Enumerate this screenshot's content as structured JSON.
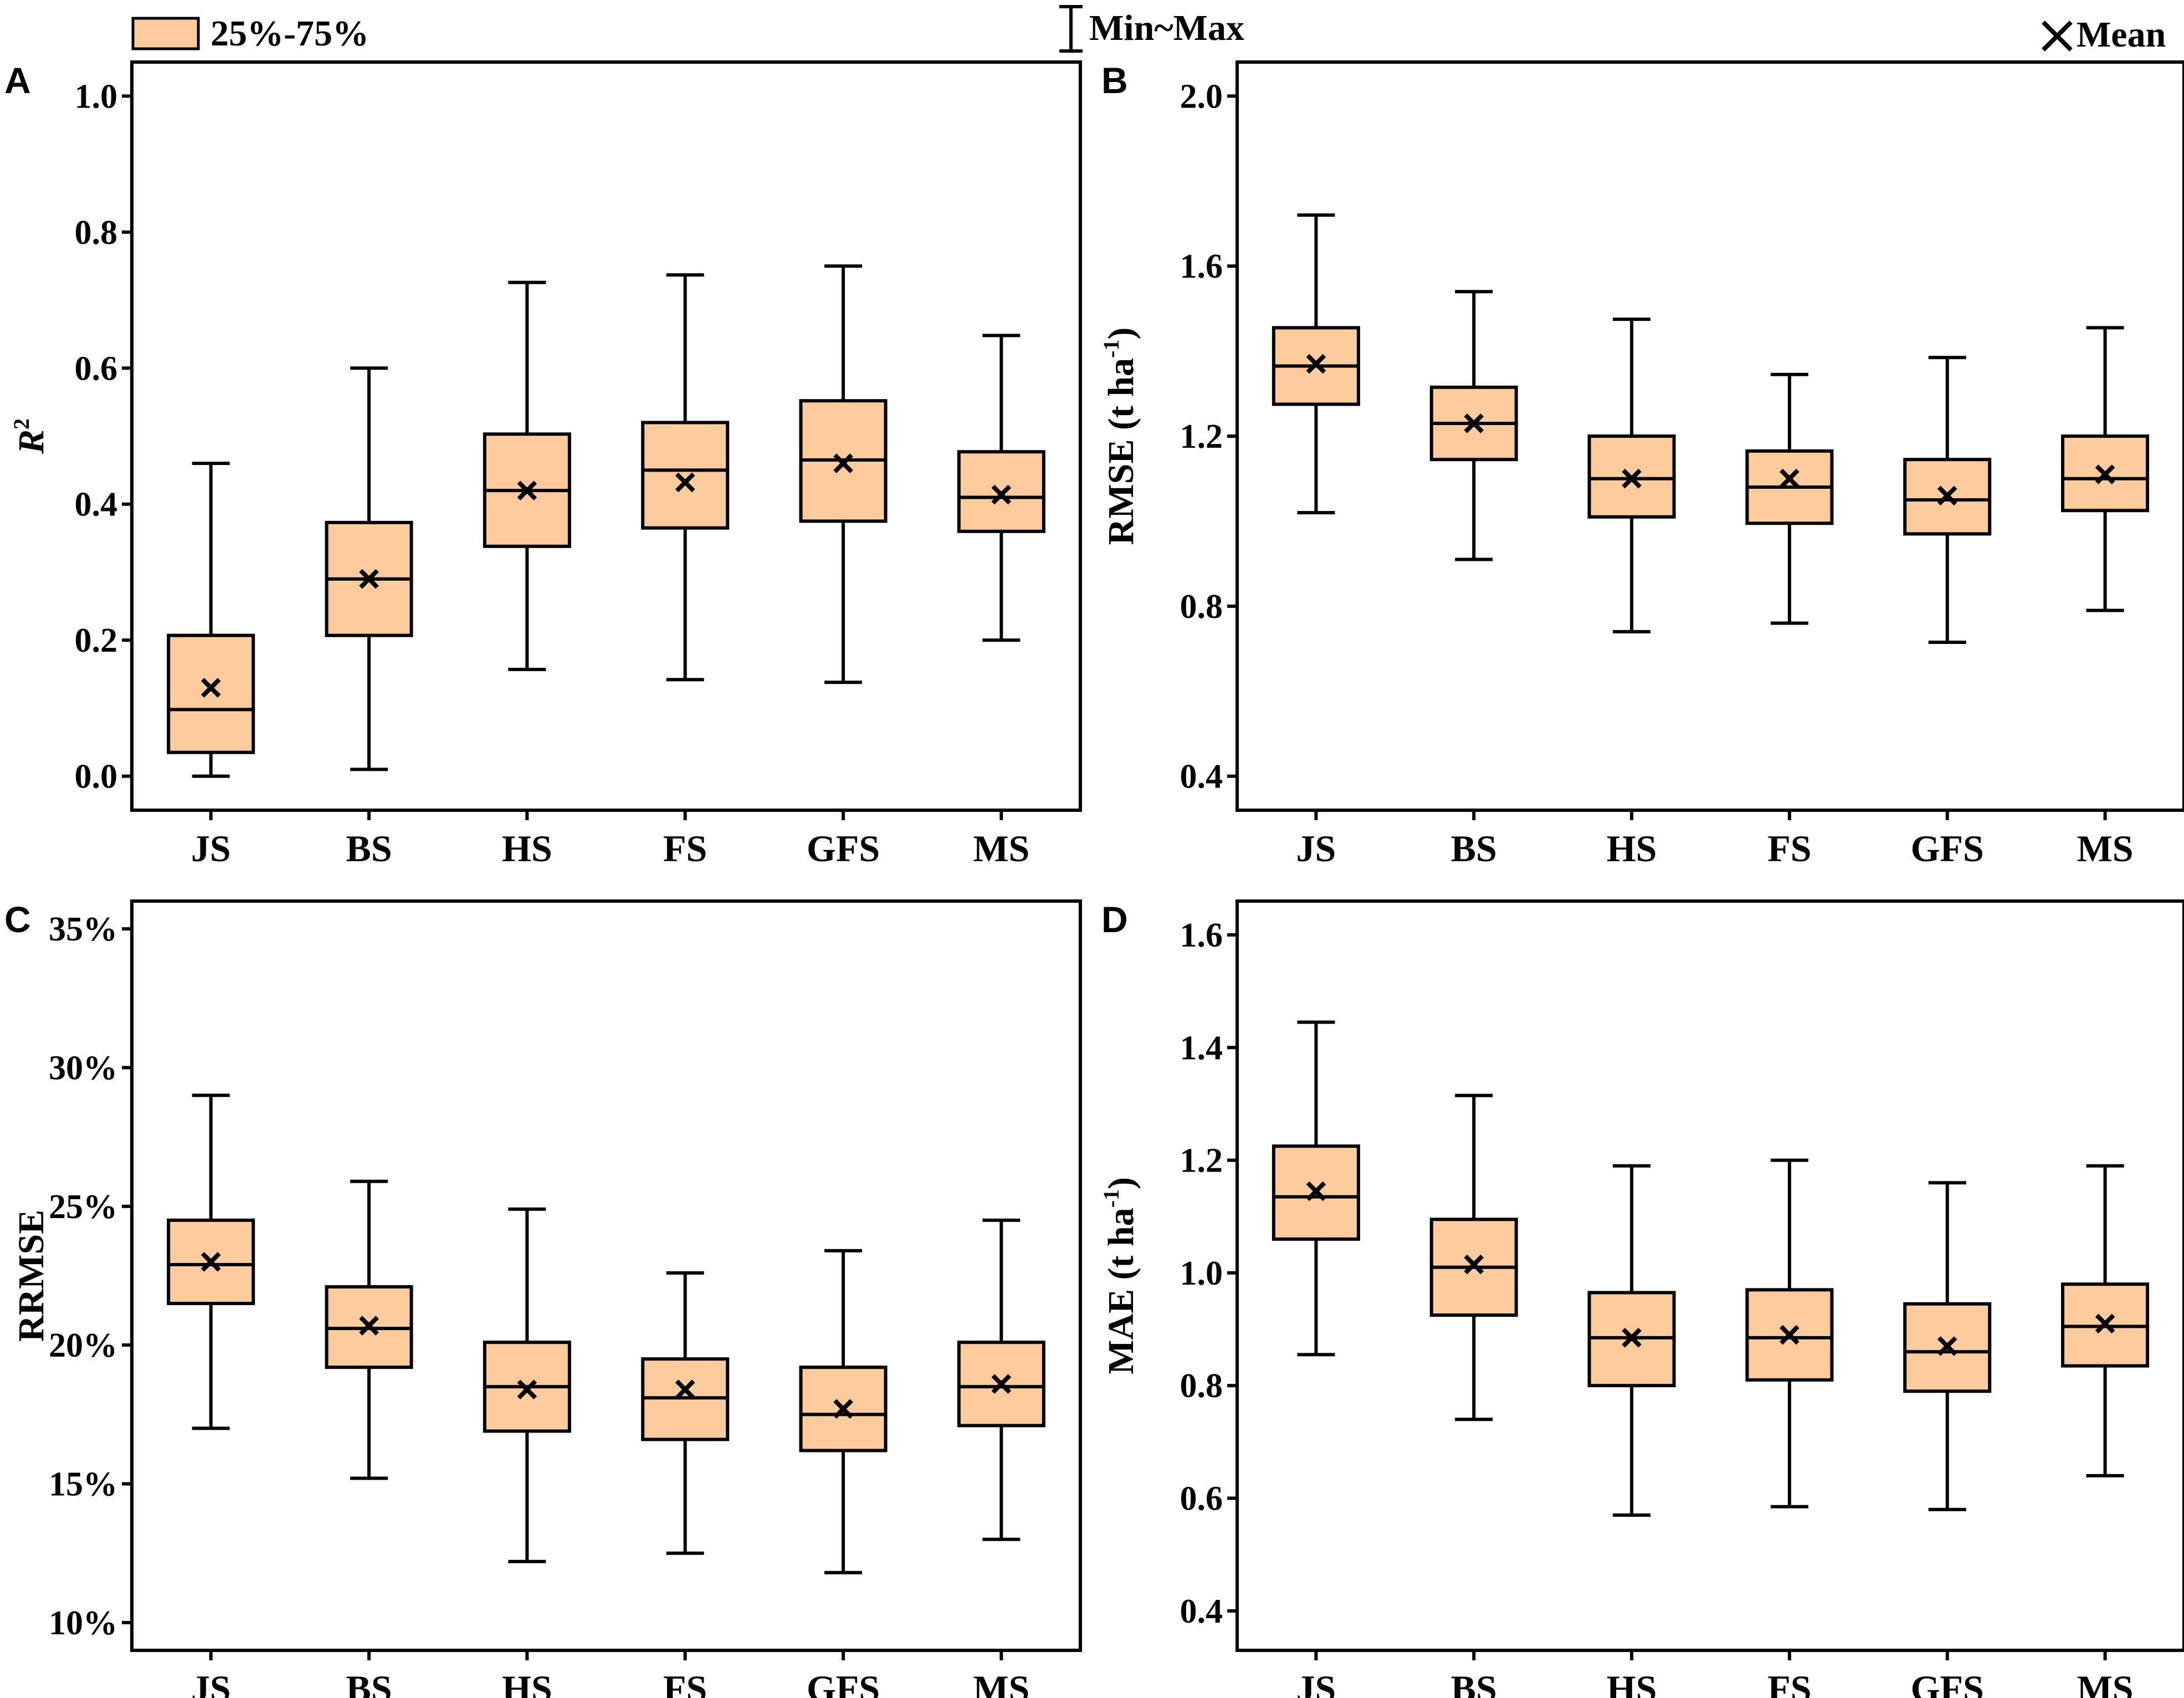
{
  "legend": {
    "box_label": "25%-75%",
    "whisker_label": "Min~Max",
    "mean_label": "Mean",
    "box_fill": "#FDCB9C",
    "line_color": "#000000"
  },
  "chart_data": [
    {
      "panel": "A",
      "type": "box",
      "ylabel": "R",
      "ylabel_superscript": "2",
      "ylim": [
        -0.05,
        1.05
      ],
      "yticks": [
        0.0,
        0.2,
        0.4,
        0.6,
        0.8,
        1.0
      ],
      "ytick_labels": [
        "0.0",
        "0.2",
        "0.4",
        "0.6",
        "0.8",
        "1.0"
      ],
      "categories": [
        "JS",
        "BS",
        "HS",
        "FS",
        "GFS",
        "MS"
      ],
      "min": [
        0.0,
        0.01,
        0.157,
        0.142,
        0.138,
        0.2
      ],
      "q1": [
        0.035,
        0.207,
        0.338,
        0.365,
        0.375,
        0.36
      ],
      "median": [
        0.098,
        0.29,
        0.42,
        0.45,
        0.465,
        0.41
      ],
      "q3": [
        0.207,
        0.373,
        0.503,
        0.52,
        0.552,
        0.477
      ],
      "max": [
        0.46,
        0.6,
        0.726,
        0.737,
        0.75,
        0.648
      ],
      "mean": [
        0.13,
        0.29,
        0.42,
        0.432,
        0.46,
        0.414
      ]
    },
    {
      "panel": "B",
      "type": "box",
      "ylabel": "RMSE (t ha",
      "ylabel_superscript": "-1",
      "ylabel_suffix": ")",
      "ylim": [
        0.32,
        2.08
      ],
      "yticks": [
        0.4,
        0.8,
        1.2,
        1.6,
        2.0
      ],
      "ytick_labels": [
        "0.4",
        "0.8",
        "1.2",
        "1.6",
        "2.0"
      ],
      "categories": [
        "JS",
        "BS",
        "HS",
        "FS",
        "GFS",
        "MS"
      ],
      "min": [
        1.02,
        0.91,
        0.74,
        0.76,
        0.715,
        0.79
      ],
      "q1": [
        1.275,
        1.145,
        1.01,
        0.995,
        0.97,
        1.025
      ],
      "median": [
        1.365,
        1.23,
        1.1,
        1.08,
        1.05,
        1.1
      ],
      "q3": [
        1.455,
        1.315,
        1.2,
        1.165,
        1.145,
        1.2
      ],
      "max": [
        1.72,
        1.54,
        1.475,
        1.345,
        1.385,
        1.455
      ],
      "mean": [
        1.37,
        1.23,
        1.1,
        1.1,
        1.06,
        1.11
      ]
    },
    {
      "panel": "C",
      "type": "box",
      "ylabel": "RRMSE",
      "ylim": [
        9.0,
        36.0
      ],
      "yticks": [
        10,
        15,
        20,
        25,
        30,
        35
      ],
      "ytick_labels": [
        "10%",
        "15%",
        "20%",
        "25%",
        "30%",
        "35%"
      ],
      "categories": [
        "JS",
        "BS",
        "HS",
        "FS",
        "GFS",
        "MS"
      ],
      "min": [
        17.0,
        15.2,
        12.2,
        12.5,
        11.8,
        13.0
      ],
      "q1": [
        21.5,
        19.2,
        16.9,
        16.6,
        16.2,
        17.1
      ],
      "median": [
        22.9,
        20.6,
        18.5,
        18.1,
        17.5,
        18.5
      ],
      "q3": [
        24.5,
        22.1,
        20.1,
        19.5,
        19.2,
        20.1
      ],
      "max": [
        29.0,
        25.9,
        24.9,
        22.6,
        23.4,
        24.5
      ],
      "mean": [
        23.0,
        20.7,
        18.4,
        18.4,
        17.7,
        18.6
      ]
    },
    {
      "panel": "D",
      "type": "box",
      "ylabel": "MAE (t ha",
      "ylabel_superscript": "-1",
      "ylabel_suffix": ")",
      "ylim": [
        0.33,
        1.66
      ],
      "yticks": [
        0.4,
        0.6,
        0.8,
        1.0,
        1.2,
        1.4,
        1.6
      ],
      "ytick_labels": [
        "0.4",
        "0.6",
        "0.8",
        "1.0",
        "1.2",
        "1.4",
        "1.6"
      ],
      "categories": [
        "JS",
        "BS",
        "HS",
        "FS",
        "GFS",
        "MS"
      ],
      "min": [
        0.855,
        0.74,
        0.57,
        0.585,
        0.58,
        0.64
      ],
      "q1": [
        1.06,
        0.925,
        0.8,
        0.81,
        0.79,
        0.835
      ],
      "median": [
        1.135,
        1.01,
        0.885,
        0.885,
        0.86,
        0.905
      ],
      "q3": [
        1.225,
        1.095,
        0.965,
        0.97,
        0.945,
        0.98
      ],
      "max": [
        1.445,
        1.315,
        1.19,
        1.2,
        1.16,
        1.19
      ],
      "mean": [
        1.145,
        1.015,
        0.885,
        0.89,
        0.87,
        0.91
      ]
    }
  ]
}
